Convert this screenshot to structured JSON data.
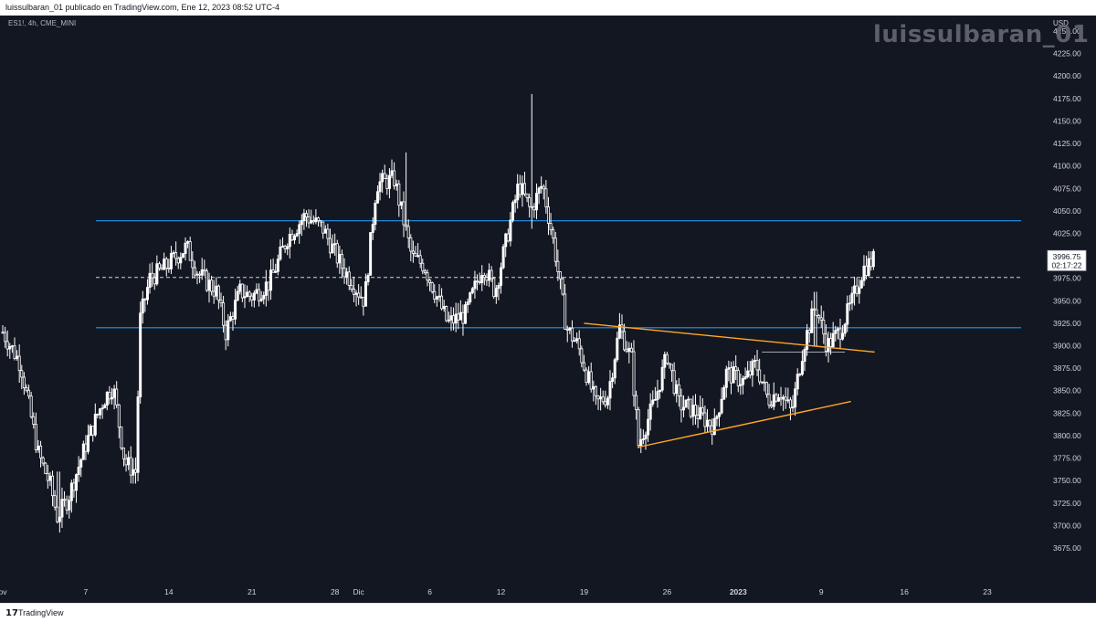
{
  "header": {
    "publish_text": "luissulbaran_01 publicado en TradingView.com, Ene 12, 2023 08:52 UTC-4"
  },
  "symbol_label": "ES1!, 4h, CME_MINI",
  "watermark": "luissulbaran_01",
  "footer": {
    "logo": "17",
    "brand": "TradingView"
  },
  "colors": {
    "background": "#131722",
    "candle": "#ffffff",
    "support_resistance": "#2196f3",
    "trendline": "#ffa726",
    "dashed_line": "#d1d4dc",
    "axis_text": "#d1d4dc"
  },
  "chart_data": {
    "type": "candlestick",
    "currency": "USD",
    "ylim": [
      3650,
      4270
    ],
    "y_ticks": [
      3675,
      3700,
      3725,
      3750,
      3775,
      3800,
      3825,
      3850,
      3875,
      3900,
      3925,
      3950,
      3975,
      4000,
      4025,
      4050,
      4075,
      4100,
      4125,
      4150,
      4175,
      4200,
      4225,
      4250
    ],
    "y_tick_labels": [
      "3675.00",
      "3700.00",
      "3725.00",
      "3750.00",
      "3775.00",
      "3800.00",
      "3825.00",
      "3850.00",
      "3875.00",
      "3900.00",
      "3925.00",
      "3950.00",
      "3975.00",
      "4000.00",
      "4025.00",
      "4050.00",
      "4075.00",
      "4100.00",
      "4125.00",
      "4150.00",
      "4175.00",
      "4200.00",
      "4225.00",
      "4250.00"
    ],
    "x_tick_labels": [
      "ov",
      "7",
      "14",
      "21",
      "28",
      "Dic",
      "6",
      "12",
      "19",
      "26",
      "2023",
      "9",
      "16",
      "23"
    ],
    "x_tick_days": [
      0,
      7,
      14,
      21,
      28,
      30,
      36,
      42,
      49,
      56,
      62,
      69,
      76,
      83
    ],
    "x_day_range": [
      0,
      86
    ],
    "last_price": "3996.75",
    "countdown": "02:17:22",
    "horizontal_levels": [
      {
        "y": 4039,
        "style": "solid"
      },
      {
        "y": 3976,
        "style": "dashed"
      },
      {
        "y": 3920,
        "style": "solid"
      }
    ],
    "trendlines": [
      {
        "x": [
          49.0,
          73.5
        ],
        "y": [
          3925,
          3893
        ]
      },
      {
        "x": [
          53.5,
          71.5
        ],
        "y": [
          3787,
          3838
        ]
      },
      {
        "x": [
          64.0,
          71.0
        ],
        "y": [
          3893,
          3893
        ]
      }
    ],
    "path_points": [
      [
        0,
        3915
      ],
      [
        1.5,
        3880
      ],
      [
        3,
        3780
      ],
      [
        4,
        3745
      ],
      [
        4.6,
        3710
      ],
      [
        5.5,
        3730
      ],
      [
        7,
        3790
      ],
      [
        8.5,
        3840
      ],
      [
        9.3,
        3855
      ],
      [
        10.3,
        3770
      ],
      [
        11.2,
        3760
      ],
      [
        11.6,
        3930
      ],
      [
        12.4,
        3975
      ],
      [
        13.5,
        3985
      ],
      [
        15.5,
        4010
      ],
      [
        16.5,
        3980
      ],
      [
        18,
        3960
      ],
      [
        18.8,
        3915
      ],
      [
        20,
        3960
      ],
      [
        21,
        3955
      ],
      [
        22.5,
        3970
      ],
      [
        24,
        4020
      ],
      [
        25.5,
        4045
      ],
      [
        27,
        4030
      ],
      [
        28.5,
        3990
      ],
      [
        30.5,
        3950
      ],
      [
        31.5,
        4080
      ],
      [
        33,
        4085
      ],
      [
        34.5,
        3998
      ],
      [
        35.5,
        3990
      ],
      [
        37.5,
        3925
      ],
      [
        39,
        3935
      ],
      [
        40.5,
        3990
      ],
      [
        41.5,
        3960
      ],
      [
        42.5,
        4020
      ],
      [
        43.5,
        4080
      ],
      [
        44.5,
        4050
      ],
      [
        45.5,
        4080
      ],
      [
        46.5,
        4010
      ],
      [
        47.5,
        3920
      ],
      [
        48.5,
        3900
      ],
      [
        50,
        3835
      ],
      [
        51,
        3845
      ],
      [
        52,
        3920
      ],
      [
        53,
        3885
      ],
      [
        53.6,
        3790
      ],
      [
        55,
        3840
      ],
      [
        56,
        3890
      ],
      [
        57,
        3835
      ],
      [
        58,
        3830
      ],
      [
        60,
        3810
      ],
      [
        61,
        3870
      ],
      [
        62.5,
        3860
      ],
      [
        63.5,
        3880
      ],
      [
        64.5,
        3840
      ],
      [
        65.5,
        3850
      ],
      [
        66.5,
        3825
      ],
      [
        67.5,
        3900
      ],
      [
        68.5,
        3945
      ],
      [
        69.5,
        3900
      ],
      [
        70.5,
        3915
      ],
      [
        71.5,
        3945
      ],
      [
        72.5,
        3985
      ],
      [
        73.5,
        3997
      ]
    ],
    "noise_seed": 7,
    "candles_per_day": 5,
    "spikes": [
      {
        "day": 44.6,
        "high": 4180,
        "low": 4030
      },
      {
        "day": 34.0,
        "high": 4115,
        "low": 4050
      },
      {
        "day": 4.7,
        "high": 3760,
        "low": 3705
      },
      {
        "day": 68.5,
        "high": 3960,
        "low": 3900
      }
    ]
  }
}
